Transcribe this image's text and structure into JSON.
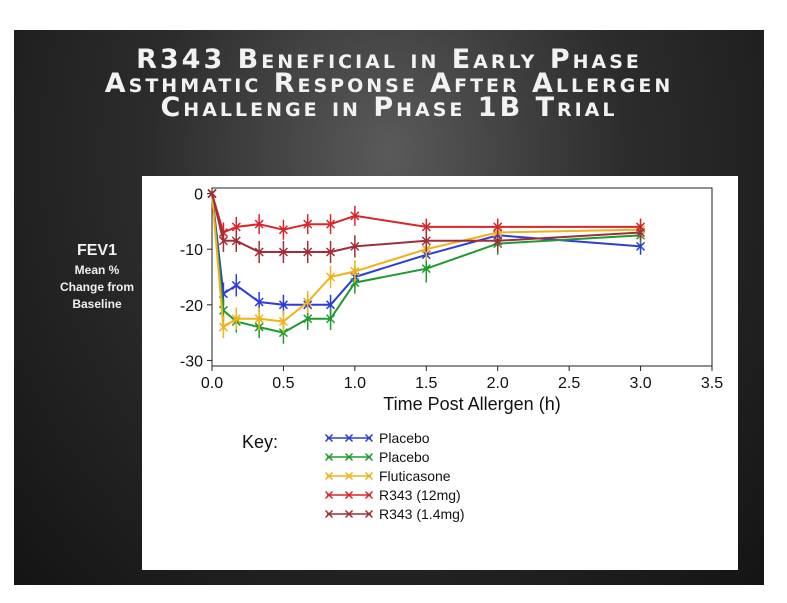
{
  "slide": {
    "title_lines": [
      "R343 Beneficial in Early Phase",
      "Asthmatic Response After Allergen",
      "Challenge in Phase 1B Trial"
    ],
    "ylabel_main": "FEV1",
    "ylabel_sub": [
      "Mean %",
      "Change from",
      "Baseline"
    ]
  },
  "chart_data": {
    "type": "line",
    "title": "R343 Beneficial in Early Phase Asthmatic Response After Allergen Challenge in Phase 1B Trial",
    "xlabel": "Time Post Allergen (h)",
    "ylabel": "FEV1 Mean % Change from Baseline",
    "xlim": [
      0,
      3.5
    ],
    "ylim": [
      -31,
      1
    ],
    "xticks": [
      "0.0",
      "0.5",
      "1.0",
      "1.5",
      "2.0",
      "2.5",
      "3.0",
      "3.5"
    ],
    "yticks": [
      "0",
      "-10",
      "-20",
      "-30"
    ],
    "legend_title": "Key:",
    "legend_position": "bottom-left",
    "series": [
      {
        "name": "Placebo",
        "color": "#2b3cd8",
        "x": [
          0,
          0.08,
          0.17,
          0.33,
          0.5,
          0.67,
          0.83,
          1.0,
          1.5,
          2.0,
          3.0
        ],
        "y": [
          0,
          -18,
          -16.5,
          -19.5,
          -20,
          -20,
          -20,
          -15,
          -11,
          -7.5,
          -9.5
        ],
        "err": [
          0,
          2,
          2,
          1.8,
          1.8,
          1.8,
          1.8,
          2,
          2.5,
          2,
          1.5
        ]
      },
      {
        "name": "Placebo",
        "color": "#1f9a2e",
        "x": [
          0,
          0.08,
          0.17,
          0.33,
          0.5,
          0.67,
          0.83,
          1.0,
          1.5,
          2.0,
          3.0
        ],
        "y": [
          0,
          -21,
          -23,
          -24,
          -25,
          -22.5,
          -22.5,
          -16,
          -13.5,
          -9,
          -7.5
        ],
        "err": [
          0,
          2,
          2,
          2,
          2,
          2,
          2,
          2,
          2.5,
          2,
          1.5
        ]
      },
      {
        "name": "Fluticasone",
        "color": "#f2b019",
        "x": [
          0,
          0.08,
          0.17,
          0.33,
          0.5,
          0.67,
          0.83,
          1.0,
          1.5,
          2.0,
          3.0
        ],
        "y": [
          0,
          -24,
          -22.5,
          -22.5,
          -23,
          -19.5,
          -15,
          -14,
          -10,
          -7,
          -6.5
        ],
        "err": [
          0,
          2,
          2,
          2,
          2,
          2,
          2,
          2,
          2,
          2,
          2
        ]
      },
      {
        "name": "R343 (12mg)",
        "color": "#d8262b",
        "x": [
          0,
          0.08,
          0.17,
          0.33,
          0.5,
          0.67,
          0.83,
          1.0,
          1.5,
          2.0,
          3.0
        ],
        "y": [
          0,
          -7,
          -6,
          -5.5,
          -6.5,
          -5.5,
          -5.5,
          -4,
          -6,
          -6,
          -6
        ],
        "err": [
          0,
          1.8,
          1.8,
          1.8,
          1.8,
          1.8,
          1.8,
          1.8,
          1.5,
          1.5,
          1.5
        ]
      },
      {
        "name": "R343 (1.4mg)",
        "color": "#9e2f38",
        "x": [
          0,
          0.08,
          0.17,
          0.33,
          0.5,
          0.67,
          0.83,
          1.0,
          1.5,
          2.0,
          3.0
        ],
        "y": [
          0,
          -8.5,
          -8.5,
          -10.5,
          -10.5,
          -10.5,
          -10.5,
          -9.5,
          -8.5,
          -8.5,
          -7
        ],
        "err": [
          0,
          2,
          2,
          2,
          2,
          2,
          2,
          2,
          2,
          2,
          1.5
        ]
      }
    ]
  }
}
